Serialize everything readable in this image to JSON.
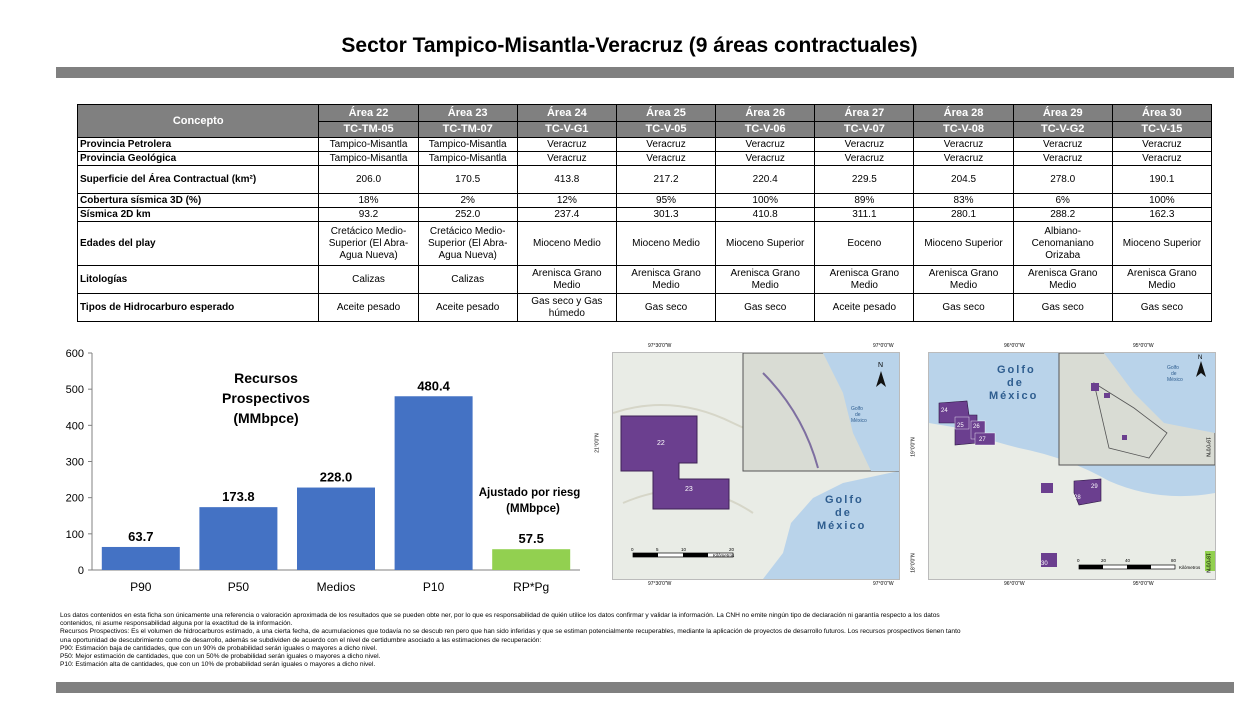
{
  "title": "Sector Tampico-Misantla-Veracruz (9 áreas contractuales)",
  "table": {
    "concepto_label": "Concepto",
    "areas": [
      {
        "name": "Área 22",
        "code": "TC-TM-05"
      },
      {
        "name": "Área 23",
        "code": "TC-TM-07"
      },
      {
        "name": "Área 24",
        "code": "TC-V-G1"
      },
      {
        "name": "Área 25",
        "code": "TC-V-05"
      },
      {
        "name": "Área 26",
        "code": "TC-V-06"
      },
      {
        "name": "Área 27",
        "code": "TC-V-07"
      },
      {
        "name": "Área 28",
        "code": "TC-V-08"
      },
      {
        "name": "Área 29",
        "code": "TC-V-G2"
      },
      {
        "name": "Área 30",
        "code": "TC-V-15"
      }
    ],
    "rows": [
      {
        "label": "Provincia Petrolera",
        "values": [
          "Tampico-Misantla",
          "Tampico-Misantla",
          "Veracruz",
          "Veracruz",
          "Veracruz",
          "Veracruz",
          "Veracruz",
          "Veracruz",
          "Veracruz"
        ]
      },
      {
        "label": "Provincia Geológica",
        "values": [
          "Tampico-Misantla",
          "Tampico-Misantla",
          "Veracruz",
          "Veracruz",
          "Veracruz",
          "Veracruz",
          "Veracruz",
          "Veracruz",
          "Veracruz"
        ]
      },
      {
        "label": "Superficie del Área Contractual (km²)",
        "values": [
          "206.0",
          "170.5",
          "413.8",
          "217.2",
          "220.4",
          "229.5",
          "204.5",
          "278.0",
          "190.1"
        ]
      },
      {
        "label": "Cobertura sísmica 3D (%)",
        "values": [
          "18%",
          "2%",
          "12%",
          "95%",
          "100%",
          "89%",
          "83%",
          "6%",
          "100%"
        ]
      },
      {
        "label": "Sísmica 2D km",
        "values": [
          "93.2",
          "252.0",
          "237.4",
          "301.3",
          "410.8",
          "311.1",
          "280.1",
          "288.2",
          "162.3"
        ]
      },
      {
        "label": "Edades del play",
        "values": [
          "Cretácico Medio-Superior (El Abra-Agua Nueva)",
          "Cretácico Medio-Superior (El Abra-Agua Nueva)",
          "Mioceno Medio",
          "Mioceno Medio",
          "Mioceno Superior",
          "Eoceno",
          "Mioceno Superior",
          "Albiano-Cenomaniano Orizaba",
          "Mioceno Superior"
        ]
      },
      {
        "label": "Litologías",
        "values": [
          "Calizas",
          "Calizas",
          "Arenisca Grano Medio",
          "Arenisca Grano Medio",
          "Arenisca Grano Medio",
          "Arenisca Grano Medio",
          "Arenisca Grano Medio",
          "Arenisca Grano Medio",
          "Arenisca Grano Medio"
        ]
      },
      {
        "label": "Tipos de Hidrocarburo esperado",
        "values": [
          "Aceite pesado",
          "Aceite pesado",
          "Gas seco y Gas húmedo",
          "Gas seco",
          "Gas seco",
          "Aceite pesado",
          "Gas seco",
          "Gas seco",
          "Gas seco"
        ]
      }
    ]
  },
  "chart_data": {
    "type": "bar",
    "categories": [
      "P90",
      "P50",
      "Medios",
      "P10",
      "RP*Pg"
    ],
    "values": [
      63.7,
      173.8,
      228.0,
      480.4,
      57.5
    ],
    "value_labels": [
      "63.7",
      "173.8",
      "228.0",
      "480.4",
      "57.5"
    ],
    "ylim": [
      0,
      600
    ],
    "yticks": [
      0,
      100,
      200,
      300,
      400,
      500,
      600
    ],
    "annotations": [
      "Recursos",
      "Prospectivos",
      "(MMbpce)"
    ],
    "annotations_risk": [
      "Ajustado por riesgo",
      "(MMbpce)"
    ],
    "colors": {
      "main": "#4472c4",
      "risk": "#92d050"
    },
    "grid": false,
    "xlabel": "",
    "ylabel": ""
  },
  "map_left": {
    "top_labels": [
      "97°30'0\"W",
      "97°0'0\"W"
    ],
    "bottom_labels": [
      "97°30'0\"W",
      "97°0'0\"W"
    ],
    "lat_label": "21°0'0\"N",
    "gulf": [
      "Golfo",
      "de",
      "México"
    ],
    "inset_gulf": [
      "Golfo",
      "de",
      "México"
    ],
    "areas": [
      "22",
      "23"
    ],
    "scale": [
      "0",
      "5",
      "10",
      "20"
    ],
    "scale_unit": "Kilómetros",
    "north": "N"
  },
  "map_right": {
    "top_labels": [
      "96°0'0\"W",
      "95°0'0\"W"
    ],
    "bottom_labels": [
      "96°0'0\"W",
      "95°0'0\"W"
    ],
    "lat_left": "19°0'0\"N",
    "lat_right": "19°0'0\"N",
    "lat_left_bottom": "18°0'0\"N",
    "lat_right_bottom": "18°0'0\"N",
    "gulf": [
      "Golfo",
      "de",
      "México"
    ],
    "inset_gulf": [
      "Golfo",
      "de",
      "México"
    ],
    "areas": [
      "24",
      "25",
      "26",
      "27",
      "28",
      "29",
      "30"
    ],
    "scale": [
      "0",
      "20",
      "40",
      "80"
    ],
    "scale_unit": "Kilómetros",
    "north": "N"
  },
  "notes": [
    "Los datos contenidos en esta ficha son únicamente una referencia o valoración aproximada de los resultados que se pueden obte ner, por lo que es responsabilidad de quién utilice los datos confirmar y validar la información. La CNH no emite ningún tipo de  declaración ni garantía respecto a los datos",
    "contenidos, ni asume responsabilidad alguna por la exactitud de la información.",
    "Recursos Prospectivos: Es el volumen de hidrocarburos estimado, a una cierta fecha, de acumulaciones que todavía no se descub ren pero que han sido inferidas y que se estiman potencialmente recuperables, mediante la aplicación de proyectos de desarrollo futuros. Los recursos prospectivos tienen tanto",
    "una oportunidad de descubrimiento como de desarrollo, además se subdividen de acuerdo con el nivel de certidumbre asociado a las estimaciones de recuperación:",
    "P90: Estimación baja de cantidades, que con un 90% de probabilidad serán iguales o mayores a dicho nivel.",
    "P50: Mejor estimación de cantidades, que con un 50% de probabilidad serán iguales o mayores a dicho nivel.",
    "P10: Estimación alta de cantidades, que con un 10% de probabilidad serán iguales o mayores a dicho nivel."
  ]
}
